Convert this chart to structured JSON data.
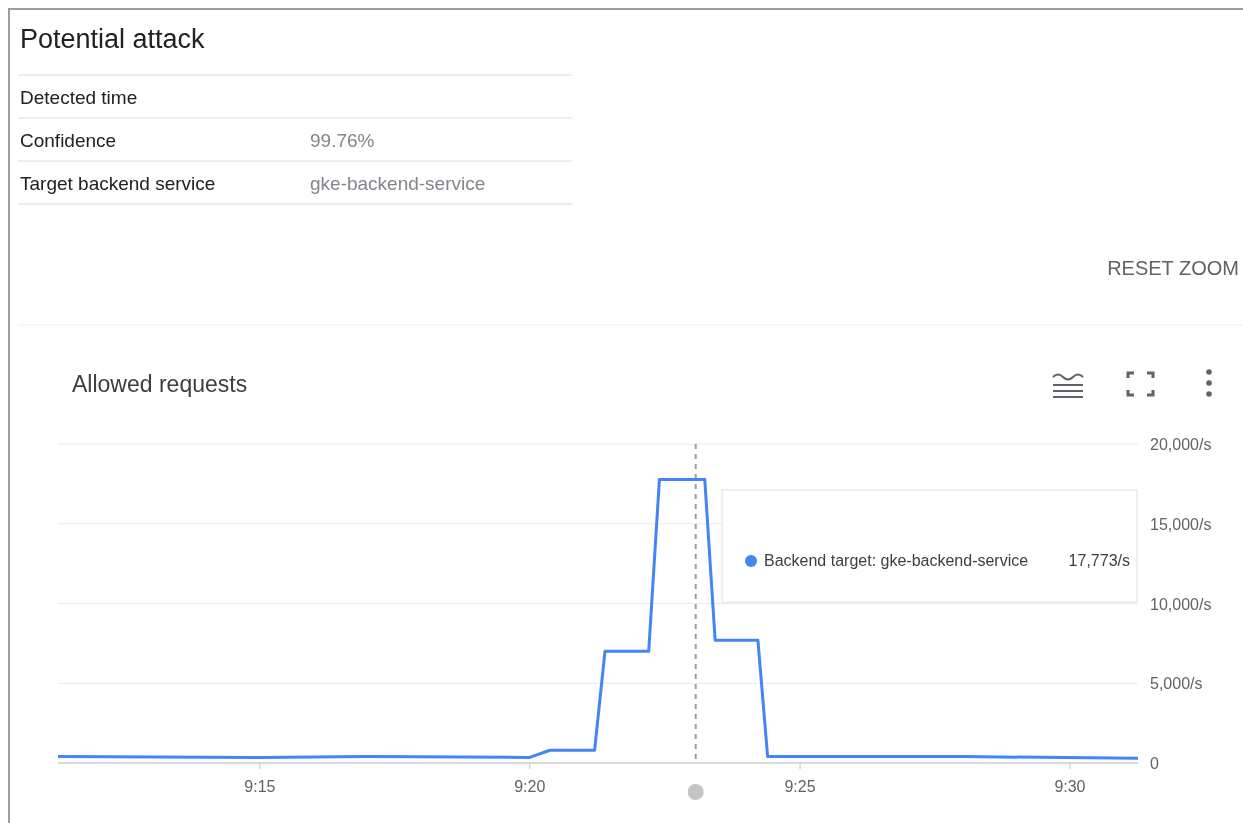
{
  "chart_data": [
    {
      "type": "other",
      "title": "Potential attack",
      "annotations": [
        "Detected time",
        "Confidence",
        "99.76%",
        "Target backend service",
        "gke-backend-service",
        "RESET ZOOM"
      ]
    },
    {
      "type": "line",
      "title": "Allowed requests",
      "x": [
        9.1877,
        9.25,
        9.2833,
        9.3333,
        9.3395,
        9.3533,
        9.3565,
        9.37,
        9.3733,
        9.3873,
        9.3905,
        9.4037,
        9.4067,
        9.4667,
        9.521
      ],
      "series": [
        {
          "name": "Backend target: gke-backend-service",
          "color": "#4285f4",
          "values": [
            400,
            350,
            400,
            350,
            800,
            800,
            7000,
            7000,
            17773,
            17773,
            7700,
            7700,
            400,
            400,
            300
          ]
        }
      ],
      "xlim": [
        9.1877,
        9.521
      ],
      "xticks": [
        {
          "value": 9.25,
          "label": "9:15"
        },
        {
          "value": 9.3333,
          "label": "9:20"
        },
        {
          "value": 9.4167,
          "label": "9:25"
        },
        {
          "value": 9.5,
          "label": "9:30"
        }
      ],
      "ylim": [
        0,
        20000
      ],
      "yticks": [
        0,
        {
          "value": 5000,
          "label": "5,000/s"
        },
        {
          "value": 10000,
          "label": "10,000/s"
        },
        {
          "value": 15000,
          "label": "15,000/s"
        },
        {
          "value": 20000,
          "label": "20,000/s"
        }
      ],
      "grid": "y",
      "legend": "top right",
      "marker": "none",
      "line_style": "solid",
      "ref_lines": [
        {
          "axis": "x",
          "value": 9.3845,
          "color": "#9e9e9e",
          "line_style": "dashed"
        }
      ],
      "annotations": [
        "17,773/s"
      ]
    }
  ]
}
